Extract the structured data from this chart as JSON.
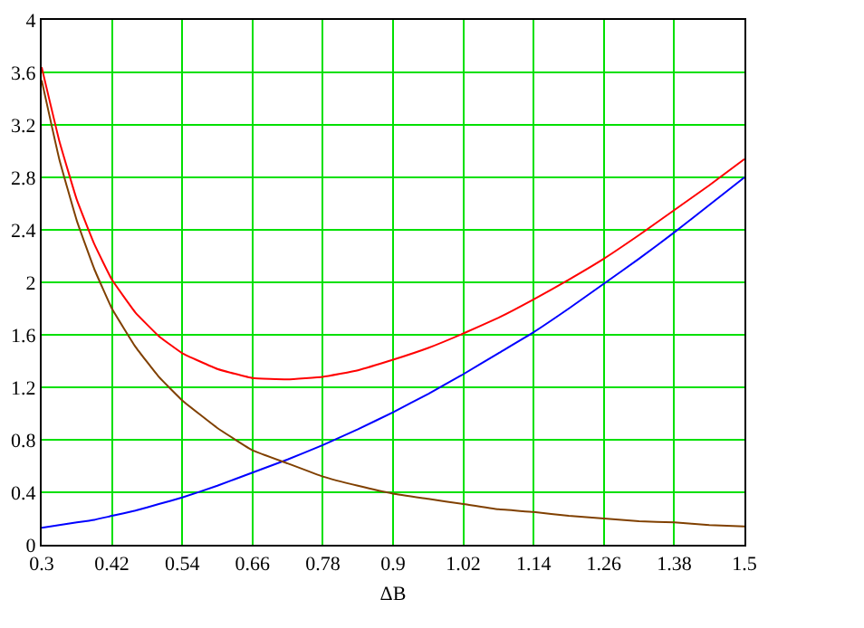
{
  "chart_data": {
    "type": "line",
    "xlabel": "ΔB",
    "x": [
      0.3,
      0.33,
      0.36,
      0.39,
      0.42,
      0.46,
      0.5,
      0.54,
      0.6,
      0.66,
      0.72,
      0.78,
      0.84,
      0.9,
      0.96,
      1.02,
      1.08,
      1.14,
      1.2,
      1.26,
      1.32,
      1.38,
      1.44,
      1.5
    ],
    "series": [
      {
        "color": "#ff0000",
        "values": [
          3.64,
          3.08,
          2.63,
          2.29,
          2.02,
          1.77,
          1.59,
          1.46,
          1.34,
          1.27,
          1.26,
          1.28,
          1.33,
          1.41,
          1.5,
          1.61,
          1.73,
          1.87,
          2.02,
          2.18,
          2.36,
          2.55,
          2.74,
          2.94
        ]
      },
      {
        "color": "#0000ff",
        "values": [
          0.13,
          0.15,
          0.17,
          0.19,
          0.22,
          0.26,
          0.31,
          0.36,
          0.45,
          0.55,
          0.65,
          0.76,
          0.88,
          1.01,
          1.15,
          1.3,
          1.46,
          1.62,
          1.8,
          1.99,
          2.18,
          2.38,
          2.59,
          2.8
        ]
      },
      {
        "color": "#804000",
        "values": [
          3.54,
          2.94,
          2.47,
          2.1,
          1.8,
          1.51,
          1.28,
          1.1,
          0.89,
          0.72,
          0.62,
          0.52,
          0.45,
          0.39,
          0.35,
          0.31,
          0.27,
          0.25,
          0.22,
          0.2,
          0.18,
          0.17,
          0.15,
          0.14
        ]
      }
    ],
    "xlim": [
      0.3,
      1.5
    ],
    "xticks": [
      0.3,
      0.42,
      0.54,
      0.66,
      0.78,
      0.9,
      1.02,
      1.14,
      1.26,
      1.38,
      1.5
    ],
    "ylim": [
      0,
      4
    ],
    "yticks": [
      0,
      0.4,
      0.8,
      1.2,
      1.6,
      2,
      2.4,
      2.8,
      3.2,
      3.6,
      4
    ],
    "grid": true,
    "marker": "none",
    "line_style": "solid"
  }
}
